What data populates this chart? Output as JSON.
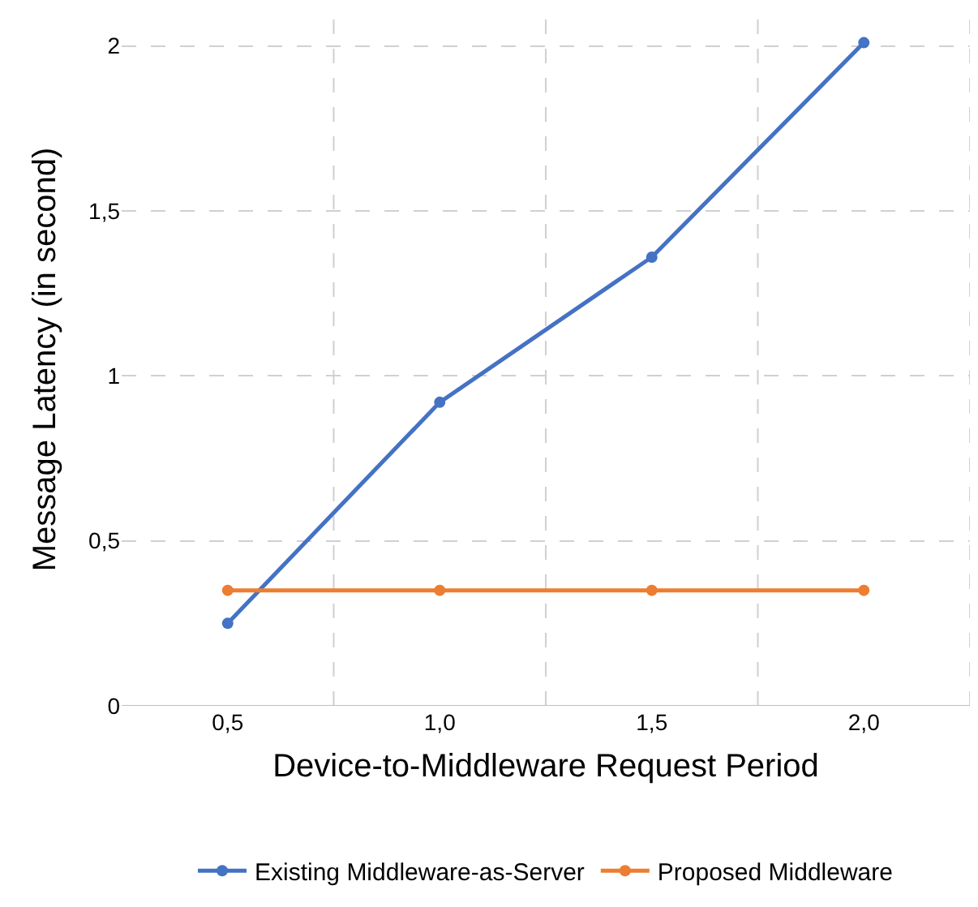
{
  "chart_data": {
    "type": "line",
    "xlabel": "Device-to-Middleware Request Period",
    "ylabel": "Message Latency (in second)",
    "categories": [
      "0,5",
      "1,0",
      "1,5",
      "2,0"
    ],
    "series": [
      {
        "name": "Existing Middleware-as-Server",
        "color": "#4472c4",
        "values": [
          0.25,
          0.92,
          1.36,
          2.01
        ]
      },
      {
        "name": "Proposed Middleware",
        "color": "#ed7d31",
        "values": [
          0.35,
          0.35,
          0.35,
          0.35
        ]
      }
    ],
    "ylim": [
      0,
      2.1
    ],
    "yticks": [
      0,
      {
        "value": 0.5,
        "label": "0,5"
      },
      1,
      {
        "value": 1.5,
        "label": "1,5"
      },
      2
    ],
    "grid": true,
    "legend": "bottom",
    "marker": "circle",
    "line_style": "solid"
  }
}
